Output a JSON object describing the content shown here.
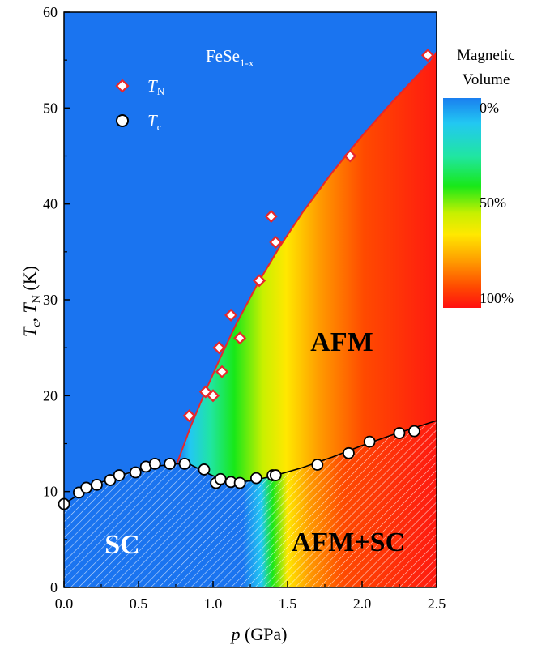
{
  "chart_data": {
    "type": "scatter",
    "annotation_material": {
      "base": "FeSe",
      "sub": "1-x"
    },
    "xlabel": {
      "italic": "p",
      "rest": " (GPa)"
    },
    "ylabel": {
      "t1": "T",
      "s1": "c",
      "mid": ", ",
      "t2": "T",
      "s2": "N",
      "rest": " (K)"
    },
    "xlim": [
      0,
      2.5
    ],
    "ylim": [
      0,
      60
    ],
    "xticks": [
      0.0,
      0.5,
      1.0,
      1.5,
      2.0,
      2.5
    ],
    "xtick_labels": [
      "0.0",
      "0.5",
      "1.0",
      "1.5",
      "2.0",
      "2.5"
    ],
    "yticks": [
      0,
      10,
      20,
      30,
      40,
      50,
      60
    ],
    "ytick_labels": [
      "0",
      "10",
      "20",
      "30",
      "40",
      "50",
      "60"
    ],
    "grid": false,
    "legend_position": "top-left",
    "legend": [
      {
        "main": "T",
        "sub": "N",
        "marker": "diamond"
      },
      {
        "main": "T",
        "sub": "c",
        "marker": "circle"
      }
    ],
    "colorbar": {
      "title_line1": "Magnetic",
      "title_line2": "Volume",
      "labels": [
        "0%",
        "50%",
        "100%"
      ],
      "values": [
        0,
        50,
        100
      ]
    },
    "region_labels": {
      "afm": "AFM",
      "sc": "SC",
      "afm_sc": "AFM+SC"
    },
    "series": [
      {
        "name": "TN",
        "marker": "diamond",
        "color": "#e8262a",
        "x": [
          0.84,
          0.95,
          1.0,
          1.04,
          1.06,
          1.12,
          1.18,
          1.31,
          1.39,
          1.42,
          1.92,
          2.44
        ],
        "y": [
          17.9,
          20.4,
          20.0,
          25.0,
          22.5,
          28.4,
          26.0,
          32.0,
          38.7,
          36.0,
          45.0,
          55.5
        ]
      },
      {
        "name": "Tc",
        "marker": "circle",
        "color": "#000000",
        "x": [
          0.0,
          0.1,
          0.15,
          0.22,
          0.31,
          0.37,
          0.48,
          0.55,
          0.61,
          0.71,
          0.81,
          0.94,
          1.02,
          1.05,
          1.12,
          1.18,
          1.29,
          1.4,
          1.42,
          1.7,
          1.91,
          2.05,
          2.25,
          2.35
        ],
        "y": [
          8.7,
          9.9,
          10.4,
          10.7,
          11.2,
          11.7,
          12.0,
          12.6,
          12.9,
          12.9,
          12.9,
          12.3,
          10.9,
          11.3,
          11.0,
          10.9,
          11.4,
          11.7,
          11.7,
          12.8,
          14.0,
          15.2,
          16.1,
          16.3
        ]
      }
    ],
    "fit_TN": {
      "x": [
        0.76,
        0.85,
        0.95,
        1.05,
        1.15,
        1.3,
        1.45,
        1.6,
        1.8,
        2.0,
        2.2,
        2.45
      ],
      "y": [
        13.0,
        16.8,
        20.5,
        24.0,
        27.3,
        31.7,
        35.6,
        39.1,
        43.3,
        47.1,
        50.6,
        54.7
      ]
    },
    "fit_Tc": {
      "x": [
        0.0,
        0.2,
        0.4,
        0.6,
        0.75,
        0.85,
        0.95,
        1.05,
        1.15,
        1.25,
        1.4,
        1.6,
        1.8,
        2.0,
        2.2,
        2.5
      ],
      "y": [
        8.7,
        10.7,
        11.8,
        12.6,
        12.9,
        12.8,
        12.0,
        11.3,
        11.0,
        11.1,
        11.6,
        12.5,
        13.6,
        14.8,
        15.9,
        17.4
      ]
    },
    "contour_boundary": {
      "p": [
        0.76,
        0.85,
        0.95,
        1.05,
        1.15,
        1.3,
        1.45,
        1.6,
        1.8,
        2.0,
        2.2,
        2.45,
        2.5
      ],
      "T": [
        13.0,
        16.8,
        20.5,
        24.0,
        27.3,
        31.7,
        35.6,
        39.1,
        43.3,
        47.1,
        50.6,
        54.7,
        56.0
      ]
    },
    "colors": {
      "background_zero": "#1a74f0",
      "fit_TN": "#e8262a",
      "fit_Tc": "#000000"
    }
  }
}
